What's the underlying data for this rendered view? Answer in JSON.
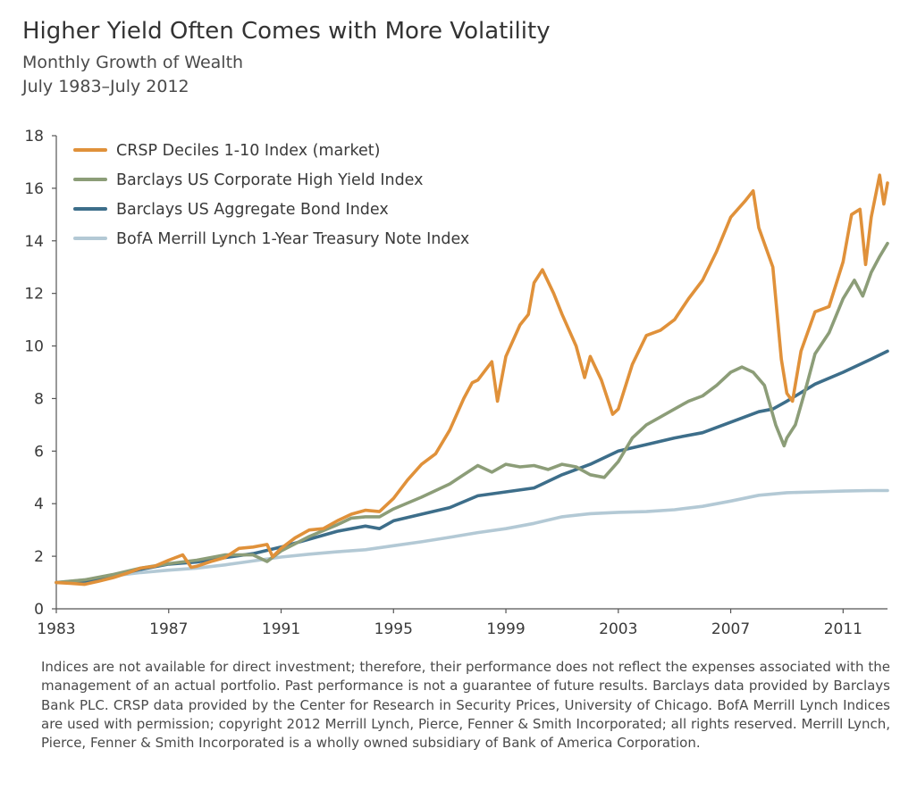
{
  "header": {
    "title": "Higher Yield Often Comes with More Volatility",
    "subtitle": "Monthly Growth of Wealth",
    "date_range": "July 1983–July 2012"
  },
  "footnote": "Indices are not available for direct investment; therefore, their performance does not reflect the expenses associated with the management of an actual portfolio. Past performance is not a guarantee of future results. Barclays data provided by Barclays Bank PLC. CRSP data provided by the Center for Research in Security Prices, University of Chicago. BofA Merrill Lynch Indices are used with permission; copyright 2012 Merrill Lynch, Pierce, Fenner & Smith Incorporated; all rights reserved. Merrill Lynch, Pierce, Fenner & Smith Incorporated is a wholly owned subsidiary of Bank of America Corporation.",
  "chart_data": {
    "type": "line",
    "title": "Higher Yield Often Comes with More Volatility",
    "subtitle": "Monthly Growth of Wealth",
    "xlabel": "",
    "ylabel": "",
    "xlim": [
      1983.0,
      2012.58
    ],
    "ylim": [
      0,
      18
    ],
    "x_ticks": [
      1983,
      1987,
      1991,
      1995,
      1999,
      2003,
      2007,
      2011
    ],
    "y_ticks": [
      0,
      2,
      4,
      6,
      8,
      10,
      12,
      14,
      16,
      18
    ],
    "grid": false,
    "legend_position": "top-left",
    "series": [
      {
        "name": "CRSP Deciles 1-10 Index (market)",
        "color": "#e0913a",
        "points": [
          [
            1983.0,
            1.0
          ],
          [
            1983.5,
            0.97
          ],
          [
            1984.0,
            0.93
          ],
          [
            1984.5,
            1.05
          ],
          [
            1985.0,
            1.18
          ],
          [
            1985.5,
            1.35
          ],
          [
            1986.0,
            1.55
          ],
          [
            1986.5,
            1.62
          ],
          [
            1987.0,
            1.85
          ],
          [
            1987.5,
            2.05
          ],
          [
            1987.8,
            1.58
          ],
          [
            1988.0,
            1.62
          ],
          [
            1988.5,
            1.8
          ],
          [
            1989.0,
            1.95
          ],
          [
            1989.5,
            2.3
          ],
          [
            1990.0,
            2.35
          ],
          [
            1990.5,
            2.45
          ],
          [
            1990.7,
            1.98
          ],
          [
            1991.0,
            2.3
          ],
          [
            1991.5,
            2.7
          ],
          [
            1992.0,
            3.0
          ],
          [
            1992.5,
            3.05
          ],
          [
            1993.0,
            3.35
          ],
          [
            1993.5,
            3.6
          ],
          [
            1994.0,
            3.75
          ],
          [
            1994.5,
            3.7
          ],
          [
            1995.0,
            4.2
          ],
          [
            1995.5,
            4.9
          ],
          [
            1996.0,
            5.5
          ],
          [
            1996.5,
            5.9
          ],
          [
            1997.0,
            6.8
          ],
          [
            1997.5,
            8.0
          ],
          [
            1997.8,
            8.6
          ],
          [
            1998.0,
            8.7
          ],
          [
            1998.5,
            9.4
          ],
          [
            1998.7,
            7.9
          ],
          [
            1999.0,
            9.6
          ],
          [
            1999.5,
            10.8
          ],
          [
            1999.8,
            11.2
          ],
          [
            2000.0,
            12.4
          ],
          [
            2000.3,
            12.9
          ],
          [
            2000.7,
            12.0
          ],
          [
            2001.0,
            11.2
          ],
          [
            2001.5,
            10.0
          ],
          [
            2001.8,
            8.8
          ],
          [
            2002.0,
            9.6
          ],
          [
            2002.4,
            8.7
          ],
          [
            2002.8,
            7.4
          ],
          [
            2003.0,
            7.6
          ],
          [
            2003.5,
            9.3
          ],
          [
            2004.0,
            10.4
          ],
          [
            2004.5,
            10.6
          ],
          [
            2005.0,
            11.0
          ],
          [
            2005.5,
            11.8
          ],
          [
            2006.0,
            12.5
          ],
          [
            2006.5,
            13.6
          ],
          [
            2007.0,
            14.9
          ],
          [
            2007.5,
            15.5
          ],
          [
            2007.8,
            15.9
          ],
          [
            2008.0,
            14.5
          ],
          [
            2008.5,
            13.0
          ],
          [
            2008.8,
            9.5
          ],
          [
            2009.0,
            8.2
          ],
          [
            2009.2,
            7.9
          ],
          [
            2009.5,
            9.8
          ],
          [
            2010.0,
            11.3
          ],
          [
            2010.5,
            11.5
          ],
          [
            2011.0,
            13.2
          ],
          [
            2011.3,
            15.0
          ],
          [
            2011.6,
            15.2
          ],
          [
            2011.8,
            13.1
          ],
          [
            2012.0,
            14.9
          ],
          [
            2012.3,
            16.5
          ],
          [
            2012.45,
            15.4
          ],
          [
            2012.58,
            16.2
          ]
        ]
      },
      {
        "name": "Barclays US Corporate High Yield Index",
        "color": "#8c9d78",
        "points": [
          [
            1983.0,
            1.0
          ],
          [
            1984.0,
            1.1
          ],
          [
            1985.0,
            1.3
          ],
          [
            1986.0,
            1.55
          ],
          [
            1987.0,
            1.72
          ],
          [
            1988.0,
            1.85
          ],
          [
            1989.0,
            2.05
          ],
          [
            1990.0,
            2.05
          ],
          [
            1990.5,
            1.8
          ],
          [
            1991.0,
            2.2
          ],
          [
            1992.0,
            2.75
          ],
          [
            1993.0,
            3.2
          ],
          [
            1993.5,
            3.45
          ],
          [
            1994.0,
            3.5
          ],
          [
            1994.5,
            3.5
          ],
          [
            1995.0,
            3.8
          ],
          [
            1996.0,
            4.25
          ],
          [
            1997.0,
            4.75
          ],
          [
            1997.5,
            5.1
          ],
          [
            1998.0,
            5.45
          ],
          [
            1998.5,
            5.2
          ],
          [
            1999.0,
            5.5
          ],
          [
            1999.5,
            5.4
          ],
          [
            2000.0,
            5.45
          ],
          [
            2000.5,
            5.3
          ],
          [
            2001.0,
            5.5
          ],
          [
            2001.5,
            5.4
          ],
          [
            2002.0,
            5.1
          ],
          [
            2002.5,
            5.0
          ],
          [
            2003.0,
            5.6
          ],
          [
            2003.5,
            6.5
          ],
          [
            2004.0,
            7.0
          ],
          [
            2004.5,
            7.3
          ],
          [
            2005.0,
            7.6
          ],
          [
            2005.5,
            7.9
          ],
          [
            2006.0,
            8.1
          ],
          [
            2006.5,
            8.5
          ],
          [
            2007.0,
            9.0
          ],
          [
            2007.4,
            9.2
          ],
          [
            2007.8,
            9.0
          ],
          [
            2008.2,
            8.5
          ],
          [
            2008.6,
            7.0
          ],
          [
            2008.9,
            6.2
          ],
          [
            2009.0,
            6.5
          ],
          [
            2009.3,
            7.0
          ],
          [
            2009.7,
            8.5
          ],
          [
            2010.0,
            9.7
          ],
          [
            2010.5,
            10.5
          ],
          [
            2011.0,
            11.8
          ],
          [
            2011.4,
            12.5
          ],
          [
            2011.7,
            11.9
          ],
          [
            2012.0,
            12.8
          ],
          [
            2012.3,
            13.4
          ],
          [
            2012.58,
            13.9
          ]
        ]
      },
      {
        "name": "Barclays US Aggregate Bond Index",
        "color": "#3d6e8a",
        "points": [
          [
            1983.0,
            1.0
          ],
          [
            1984.0,
            1.05
          ],
          [
            1985.0,
            1.25
          ],
          [
            1986.0,
            1.5
          ],
          [
            1987.0,
            1.7
          ],
          [
            1988.0,
            1.78
          ],
          [
            1989.0,
            1.95
          ],
          [
            1990.0,
            2.1
          ],
          [
            1991.0,
            2.35
          ],
          [
            1992.0,
            2.65
          ],
          [
            1993.0,
            2.95
          ],
          [
            1994.0,
            3.15
          ],
          [
            1994.5,
            3.05
          ],
          [
            1995.0,
            3.35
          ],
          [
            1996.0,
            3.6
          ],
          [
            1997.0,
            3.85
          ],
          [
            1998.0,
            4.3
          ],
          [
            1999.0,
            4.45
          ],
          [
            2000.0,
            4.6
          ],
          [
            2001.0,
            5.1
          ],
          [
            2002.0,
            5.5
          ],
          [
            2003.0,
            6.0
          ],
          [
            2004.0,
            6.25
          ],
          [
            2005.0,
            6.5
          ],
          [
            2006.0,
            6.7
          ],
          [
            2007.0,
            7.1
          ],
          [
            2008.0,
            7.5
          ],
          [
            2008.5,
            7.6
          ],
          [
            2009.0,
            7.9
          ],
          [
            2010.0,
            8.55
          ],
          [
            2011.0,
            9.0
          ],
          [
            2012.0,
            9.5
          ],
          [
            2012.58,
            9.8
          ]
        ]
      },
      {
        "name": "BofA Merrill Lynch 1-Year Treasury Note Index",
        "color": "#b3c9d5",
        "points": [
          [
            1983.0,
            1.0
          ],
          [
            1984.0,
            1.1
          ],
          [
            1985.0,
            1.25
          ],
          [
            1986.0,
            1.38
          ],
          [
            1987.0,
            1.47
          ],
          [
            1988.0,
            1.55
          ],
          [
            1989.0,
            1.67
          ],
          [
            1990.0,
            1.82
          ],
          [
            1991.0,
            1.97
          ],
          [
            1992.0,
            2.08
          ],
          [
            1993.0,
            2.17
          ],
          [
            1994.0,
            2.25
          ],
          [
            1995.0,
            2.4
          ],
          [
            1996.0,
            2.55
          ],
          [
            1997.0,
            2.72
          ],
          [
            1998.0,
            2.9
          ],
          [
            1999.0,
            3.05
          ],
          [
            2000.0,
            3.25
          ],
          [
            2001.0,
            3.5
          ],
          [
            2002.0,
            3.62
          ],
          [
            2003.0,
            3.67
          ],
          [
            2004.0,
            3.7
          ],
          [
            2005.0,
            3.77
          ],
          [
            2006.0,
            3.9
          ],
          [
            2007.0,
            4.1
          ],
          [
            2008.0,
            4.32
          ],
          [
            2009.0,
            4.42
          ],
          [
            2010.0,
            4.45
          ],
          [
            2011.0,
            4.48
          ],
          [
            2012.0,
            4.5
          ],
          [
            2012.58,
            4.5
          ]
        ]
      }
    ]
  }
}
